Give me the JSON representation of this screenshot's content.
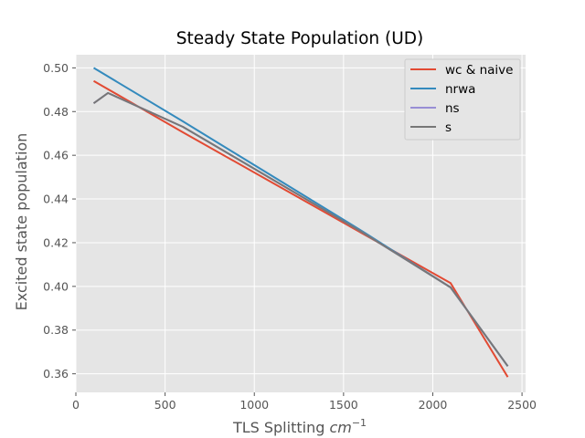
{
  "chart_data": {
    "type": "line",
    "title": "Steady State Population (UD)",
    "xlabel": {
      "prefix": "TLS Splitting ",
      "unit_base": "cm",
      "unit_exp": "−1"
    },
    "ylabel": "Excited state population",
    "xlim": [
      0,
      2520
    ],
    "ylim": [
      0.3515,
      0.506
    ],
    "xticks": [
      0,
      500,
      1000,
      1500,
      2000,
      2500
    ],
    "xtick_labels": [
      "0",
      "500",
      "1000",
      "1500",
      "2000",
      "2500"
    ],
    "yticks": [
      0.36,
      0.38,
      0.4,
      0.42,
      0.44,
      0.46,
      0.48,
      0.5
    ],
    "ytick_labels": [
      "0.36",
      "0.38",
      "0.40",
      "0.42",
      "0.44",
      "0.46",
      "0.48",
      "0.50"
    ],
    "grid": true,
    "legend_position": "top-right",
    "series": [
      {
        "name": "wc & naive",
        "color": "#E24A33",
        "points": [
          [
            100,
            0.494
          ],
          [
            600,
            0.4705
          ],
          [
            1100,
            0.4475
          ],
          [
            1600,
            0.4245
          ],
          [
            2100,
            0.4015
          ],
          [
            2420,
            0.3585
          ]
        ]
      },
      {
        "name": "nrwa",
        "color": "#348ABD",
        "points": [
          [
            100,
            0.5
          ],
          [
            600,
            0.4755
          ],
          [
            1100,
            0.4505
          ],
          [
            1600,
            0.4255
          ],
          [
            2100,
            0.3995
          ],
          [
            2420,
            0.3635
          ]
        ]
      },
      {
        "name": "ns",
        "color": "#988ED5",
        "points": [
          [
            100,
            0.4838
          ],
          [
            180,
            0.4885
          ],
          [
            600,
            0.473
          ],
          [
            1100,
            0.449
          ],
          [
            1600,
            0.425
          ],
          [
            2100,
            0.3995
          ],
          [
            2420,
            0.3635
          ]
        ]
      },
      {
        "name": "s",
        "color": "#777777",
        "points": [
          [
            100,
            0.4838
          ],
          [
            180,
            0.4885
          ],
          [
            600,
            0.473
          ],
          [
            1100,
            0.449
          ],
          [
            1600,
            0.425
          ],
          [
            2100,
            0.3995
          ],
          [
            2420,
            0.3635
          ]
        ]
      }
    ]
  }
}
